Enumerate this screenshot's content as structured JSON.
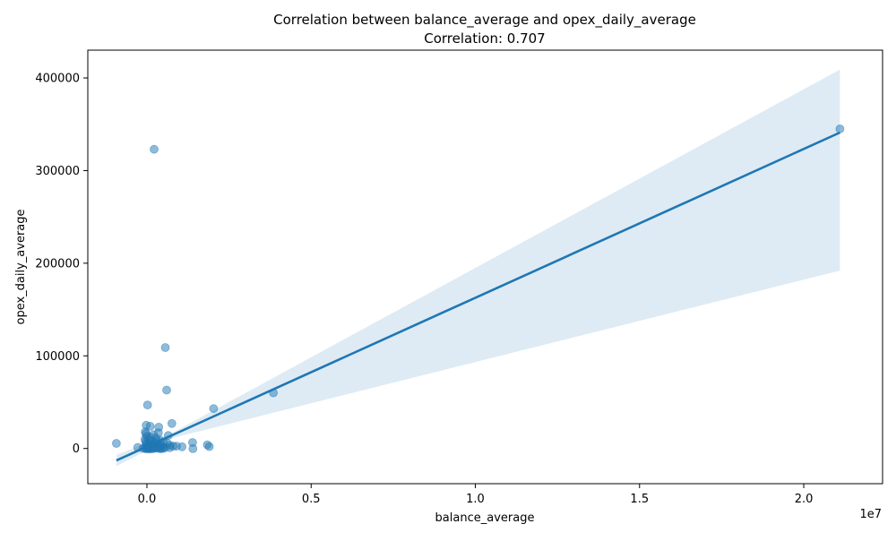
{
  "chart_data": {
    "type": "scatter",
    "title": "Correlation between balance_average and opex_daily_average",
    "subtitle": "Correlation: 0.707",
    "xlabel": "balance_average",
    "ylabel": "opex_daily_average",
    "x_offset_label": "1e7",
    "xlim": [
      -1800000,
      22400000
    ],
    "ylim": [
      -38000,
      430000
    ],
    "x_ticks": [
      {
        "value": 0,
        "label": "0.0"
      },
      {
        "value": 5000000,
        "label": "0.5"
      },
      {
        "value": 10000000,
        "label": "1.0"
      },
      {
        "value": 15000000,
        "label": "1.5"
      },
      {
        "value": 20000000,
        "label": "2.0"
      }
    ],
    "y_ticks": [
      {
        "value": 0,
        "label": "0"
      },
      {
        "value": 100000,
        "label": "100000"
      },
      {
        "value": 200000,
        "label": "200000"
      },
      {
        "value": 300000,
        "label": "300000"
      },
      {
        "value": 400000,
        "label": "400000"
      }
    ],
    "grid": false,
    "colors": {
      "points": "#1f77b4",
      "line": "#1f77b4",
      "band": "#1f77b4"
    },
    "points": [
      [
        21100000,
        345000
      ],
      [
        220000,
        323000
      ],
      [
        560000,
        109000
      ],
      [
        600000,
        63000
      ],
      [
        3850000,
        60000
      ],
      [
        20000,
        47000
      ],
      [
        2030000,
        43000
      ],
      [
        760000,
        27000
      ],
      [
        -20000,
        25000
      ],
      [
        100000,
        24000
      ],
      [
        360000,
        23000
      ],
      [
        -50000,
        18000
      ],
      [
        350000,
        17000
      ],
      [
        -30000,
        16000
      ],
      [
        200000,
        15000
      ],
      [
        650000,
        14000
      ],
      [
        0,
        13000
      ],
      [
        120000,
        12000
      ],
      [
        280000,
        11000
      ],
      [
        -60000,
        10000
      ],
      [
        60000,
        9500
      ],
      [
        400000,
        9000
      ],
      [
        150000,
        8500
      ],
      [
        300000,
        8000
      ],
      [
        -40000,
        7500
      ],
      [
        500000,
        7000
      ],
      [
        80000,
        6500
      ],
      [
        1390000,
        6500
      ],
      [
        -930000,
        5500
      ],
      [
        250000,
        6000
      ],
      [
        620000,
        5500
      ],
      [
        -20000,
        5000
      ],
      [
        180000,
        4500
      ],
      [
        1840000,
        4000
      ],
      [
        350000,
        4000
      ],
      [
        700000,
        3500
      ],
      [
        50000,
        3500
      ],
      [
        450000,
        3000
      ],
      [
        -10000,
        3000
      ],
      [
        130000,
        2800
      ],
      [
        800000,
        2500
      ],
      [
        900000,
        2500
      ],
      [
        1900000,
        2000
      ],
      [
        230000,
        2200
      ],
      [
        1070000,
        1800
      ],
      [
        -280000,
        1200
      ],
      [
        480000,
        1500
      ],
      [
        20000,
        1500
      ],
      [
        330000,
        1200
      ],
      [
        100000,
        1000
      ],
      [
        560000,
        1000
      ],
      [
        700000,
        900
      ],
      [
        -60000,
        800
      ],
      [
        280000,
        700
      ],
      [
        1400000,
        -200
      ],
      [
        150000,
        600
      ],
      [
        400000,
        500
      ],
      [
        0,
        400
      ],
      [
        60000,
        300
      ],
      [
        220000,
        200
      ],
      [
        -120000,
        100
      ],
      [
        350000,
        100
      ],
      [
        500000,
        0
      ],
      [
        30000,
        -200
      ],
      [
        180000,
        -300
      ],
      [
        420000,
        -400
      ],
      [
        -30000,
        -500
      ],
      [
        90000,
        -600
      ]
    ],
    "regression": {
      "x": [
        -930000,
        21100000
      ],
      "y": [
        -13000,
        341000
      ],
      "ci_low_at_start": -19000,
      "ci_high_at_start": -7000,
      "ci_low_at_end": 192000,
      "ci_high_at_end": 409000,
      "ci_pivot_x": 700000,
      "ci_pivot_y": 13000
    }
  }
}
